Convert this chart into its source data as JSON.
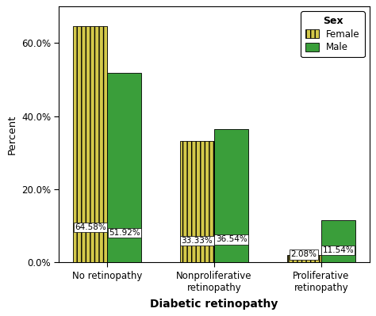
{
  "categories": [
    "No retinopathy",
    "Nonproliferative\nretinopathy",
    "Proliferative\nretinopathy"
  ],
  "female_values": [
    64.58,
    33.33,
    2.08
  ],
  "male_values": [
    51.92,
    36.54,
    11.54
  ],
  "female_color": "#d4c94a",
  "male_color": "#3a9e3a",
  "female_hatch": "|||",
  "male_hatch": "===",
  "title": "Sex",
  "xlabel": "Diabetic retinopathy",
  "ylabel": "Percent",
  "ylim": [
    0,
    70
  ],
  "bar_width": 0.32,
  "legend_labels": [
    "Female",
    "Male"
  ],
  "bar_label_fontsize": 7.5,
  "background_color": "#ffffff"
}
